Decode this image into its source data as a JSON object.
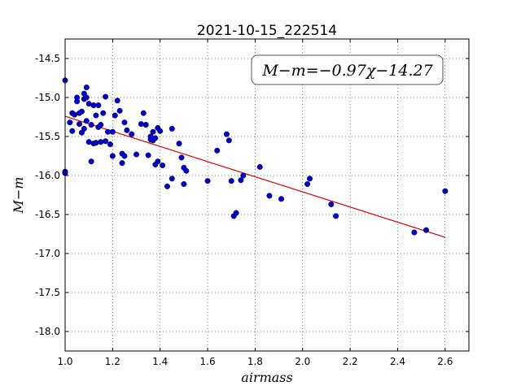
{
  "chart_data": {
    "type": "scatter",
    "title": "2021-10-15_222514",
    "xlabel": "airmass",
    "ylabel": "M−m",
    "xlim": [
      1.0,
      2.7
    ],
    "ylim": [
      -18.25,
      -14.25
    ],
    "xticks": [
      "1.0",
      "1.2",
      "1.4",
      "1.6",
      "1.8",
      "2.0",
      "2.2",
      "2.4",
      "2.6"
    ],
    "yticks": [
      "-14.5",
      "-15.0",
      "-15.5",
      "-16.0",
      "-16.5",
      "-17.0",
      "-17.5",
      "-18.0"
    ],
    "grid": true,
    "annotation": "M−m=−0.97χ−14.27",
    "marker_color": "#0000cc",
    "fit_color": "#dd0000",
    "fit": {
      "slope": -0.97,
      "intercept": -14.27,
      "x": [
        1.0,
        2.6
      ]
    },
    "points": [
      [
        1.0,
        -14.78
      ],
      [
        1.0,
        -15.95
      ],
      [
        1.0,
        -15.97
      ],
      [
        1.02,
        -15.32
      ],
      [
        1.03,
        -15.2
      ],
      [
        1.03,
        -15.43
      ],
      [
        1.04,
        -15.22
      ],
      [
        1.05,
        -15.05
      ],
      [
        1.05,
        -15.0
      ],
      [
        1.06,
        -15.34
      ],
      [
        1.06,
        -15.2
      ],
      [
        1.07,
        -15.45
      ],
      [
        1.07,
        -15.18
      ],
      [
        1.08,
        -15.02
      ],
      [
        1.08,
        -14.95
      ],
      [
        1.08,
        -15.4
      ],
      [
        1.09,
        -14.87
      ],
      [
        1.09,
        -15.3
      ],
      [
        1.09,
        -15.0
      ],
      [
        1.1,
        -15.57
      ],
      [
        1.1,
        -15.08
      ],
      [
        1.11,
        -15.82
      ],
      [
        1.11,
        -15.35
      ],
      [
        1.12,
        -15.59
      ],
      [
        1.12,
        -15.1
      ],
      [
        1.13,
        -15.23
      ],
      [
        1.13,
        -15.58
      ],
      [
        1.14,
        -15.38
      ],
      [
        1.14,
        -15.1
      ],
      [
        1.15,
        -15.57
      ],
      [
        1.15,
        -15.35
      ],
      [
        1.16,
        -15.2
      ],
      [
        1.17,
        -14.99
      ],
      [
        1.17,
        -15.56
      ],
      [
        1.18,
        -15.44
      ],
      [
        1.19,
        -15.6
      ],
      [
        1.2,
        -15.44
      ],
      [
        1.2,
        -15.75
      ],
      [
        1.21,
        -15.23
      ],
      [
        1.22,
        -15.04
      ],
      [
        1.23,
        -15.17
      ],
      [
        1.24,
        -15.72
      ],
      [
        1.24,
        -15.84
      ],
      [
        1.25,
        -15.75
      ],
      [
        1.25,
        -15.32
      ],
      [
        1.26,
        -15.42
      ],
      [
        1.28,
        -15.47
      ],
      [
        1.3,
        -15.73
      ],
      [
        1.32,
        -15.34
      ],
      [
        1.33,
        -15.2
      ],
      [
        1.34,
        -15.35
      ],
      [
        1.35,
        -15.74
      ],
      [
        1.36,
        -15.5
      ],
      [
        1.36,
        -15.54
      ],
      [
        1.37,
        -15.44
      ],
      [
        1.37,
        -15.55
      ],
      [
        1.38,
        -15.52
      ],
      [
        1.38,
        -15.86
      ],
      [
        1.39,
        -15.39
      ],
      [
        1.39,
        -15.82
      ],
      [
        1.4,
        -15.43
      ],
      [
        1.41,
        -15.87
      ],
      [
        1.43,
        -16.14
      ],
      [
        1.45,
        -16.04
      ],
      [
        1.45,
        -15.4
      ],
      [
        1.48,
        -15.59
      ],
      [
        1.49,
        -15.77
      ],
      [
        1.5,
        -15.9
      ],
      [
        1.5,
        -16.11
      ],
      [
        1.51,
        -15.94
      ],
      [
        1.6,
        -16.07
      ],
      [
        1.64,
        -15.68
      ],
      [
        1.68,
        -15.47
      ],
      [
        1.69,
        -15.55
      ],
      [
        1.7,
        -16.07
      ],
      [
        1.71,
        -16.52
      ],
      [
        1.72,
        -16.48
      ],
      [
        1.74,
        -16.06
      ],
      [
        1.75,
        -16.0
      ],
      [
        1.82,
        -15.89
      ],
      [
        1.86,
        -16.26
      ],
      [
        1.91,
        -16.3
      ],
      [
        2.02,
        -16.11
      ],
      [
        2.03,
        -16.04
      ],
      [
        2.12,
        -16.37
      ],
      [
        2.14,
        -16.52
      ],
      [
        2.47,
        -16.73
      ],
      [
        2.52,
        -16.7
      ],
      [
        2.6,
        -16.2
      ]
    ]
  }
}
